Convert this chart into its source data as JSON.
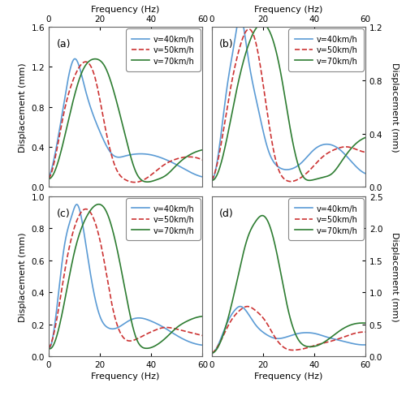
{
  "xlabel": "Frequency (Hz)",
  "ylabel": "Displacement (mm)",
  "xlim": [
    0,
    60
  ],
  "xticks": [
    0,
    20,
    40,
    60
  ],
  "color_40": "#5B9BD5",
  "color_50": "#CC3333",
  "color_70": "#2E7D32",
  "panels": [
    {
      "label": "(a)",
      "row": 0,
      "col": 0,
      "ylim": [
        0,
        1.6
      ],
      "yticks": [
        0,
        0.4,
        0.8,
        1.2,
        1.6
      ],
      "y_side": "left",
      "x_side": "top",
      "v40": [
        0,
        0.08,
        3,
        0.4,
        6,
        0.85,
        10,
        1.28,
        14,
        1.0,
        20,
        0.55,
        25,
        0.32,
        30,
        0.31,
        35,
        0.33,
        40,
        0.32,
        45,
        0.28,
        50,
        0.22,
        55,
        0.15,
        60,
        0.1
      ],
      "v50": [
        0,
        0.08,
        3,
        0.35,
        6,
        0.75,
        10,
        1.1,
        14,
        1.25,
        18,
        1.1,
        22,
        0.6,
        26,
        0.2,
        30,
        0.07,
        35,
        0.05,
        40,
        0.12,
        45,
        0.22,
        50,
        0.28,
        55,
        0.3,
        60,
        0.27
      ],
      "v70": [
        0,
        0.08,
        4,
        0.28,
        8,
        0.7,
        13,
        1.15,
        18,
        1.28,
        22,
        1.2,
        26,
        0.9,
        30,
        0.5,
        34,
        0.15,
        38,
        0.05,
        42,
        0.07,
        46,
        0.12,
        50,
        0.22,
        55,
        0.32,
        60,
        0.37
      ]
    },
    {
      "label": "(b)",
      "row": 0,
      "col": 1,
      "ylim": [
        0,
        1.2
      ],
      "yticks": [
        0,
        0.4,
        0.8,
        1.2
      ],
      "y_side": "right",
      "x_side": "top",
      "v40": [
        0,
        0.05,
        3,
        0.3,
        6,
        0.75,
        9,
        1.1,
        11,
        1.28,
        14,
        1.0,
        18,
        0.6,
        22,
        0.28,
        26,
        0.15,
        30,
        0.13,
        35,
        0.18,
        40,
        0.28,
        45,
        0.32,
        50,
        0.28,
        55,
        0.18,
        60,
        0.1
      ],
      "v50": [
        0,
        0.05,
        3,
        0.25,
        7,
        0.7,
        11,
        1.05,
        14,
        1.18,
        17,
        1.1,
        21,
        0.65,
        25,
        0.2,
        29,
        0.05,
        33,
        0.05,
        38,
        0.12,
        43,
        0.22,
        48,
        0.28,
        53,
        0.3,
        58,
        0.27,
        60,
        0.26
      ],
      "v70": [
        0,
        0.05,
        5,
        0.28,
        10,
        0.75,
        15,
        1.1,
        19,
        1.22,
        23,
        1.15,
        27,
        0.85,
        31,
        0.4,
        35,
        0.1,
        39,
        0.05,
        43,
        0.07,
        47,
        0.1,
        51,
        0.2,
        55,
        0.3,
        58,
        0.35,
        60,
        0.37
      ]
    },
    {
      "label": "(c)",
      "row": 1,
      "col": 0,
      "ylim": [
        0,
        1.0
      ],
      "yticks": [
        0,
        0.2,
        0.4,
        0.6,
        0.8,
        1.0
      ],
      "y_side": "left",
      "x_side": "bottom",
      "v40": [
        0,
        0.05,
        3,
        0.28,
        6,
        0.68,
        9,
        0.88,
        11,
        0.95,
        14,
        0.75,
        17,
        0.45,
        20,
        0.25,
        23,
        0.18,
        27,
        0.18,
        31,
        0.22,
        35,
        0.24,
        40,
        0.22,
        45,
        0.18,
        50,
        0.13,
        55,
        0.09,
        60,
        0.07
      ],
      "v50": [
        0,
        0.05,
        3,
        0.22,
        7,
        0.6,
        11,
        0.85,
        14,
        0.92,
        17,
        0.88,
        21,
        0.65,
        25,
        0.3,
        29,
        0.12,
        33,
        0.1,
        37,
        0.13,
        41,
        0.16,
        45,
        0.18,
        50,
        0.17,
        55,
        0.15,
        60,
        0.13
      ],
      "v70": [
        0,
        0.05,
        5,
        0.25,
        10,
        0.65,
        15,
        0.88,
        19,
        0.95,
        22,
        0.92,
        26,
        0.72,
        30,
        0.4,
        34,
        0.12,
        38,
        0.05,
        42,
        0.07,
        46,
        0.12,
        50,
        0.18,
        54,
        0.22,
        57,
        0.24,
        60,
        0.25
      ]
    },
    {
      "label": "(d)",
      "row": 1,
      "col": 1,
      "ylim": [
        0,
        2.5
      ],
      "yticks": [
        0,
        0.5,
        1.0,
        1.5,
        2.0,
        2.5
      ],
      "y_side": "right",
      "x_side": "bottom",
      "v40": [
        0,
        0.05,
        3,
        0.22,
        6,
        0.52,
        9,
        0.72,
        11,
        0.78,
        14,
        0.68,
        17,
        0.5,
        21,
        0.35,
        25,
        0.28,
        29,
        0.3,
        33,
        0.35,
        37,
        0.37,
        41,
        0.35,
        45,
        0.3,
        50,
        0.25,
        55,
        0.2,
        60,
        0.18
      ],
      "v50": [
        0,
        0.05,
        3,
        0.2,
        7,
        0.52,
        11,
        0.72,
        14,
        0.78,
        17,
        0.72,
        21,
        0.55,
        25,
        0.28,
        29,
        0.12,
        33,
        0.1,
        37,
        0.13,
        41,
        0.18,
        45,
        0.22,
        50,
        0.28,
        55,
        0.35,
        60,
        0.38
      ],
      "v70": [
        0,
        0.05,
        5,
        0.4,
        10,
        1.2,
        14,
        1.85,
        17,
        2.1,
        20,
        2.2,
        23,
        2.0,
        26,
        1.5,
        30,
        0.7,
        34,
        0.25,
        38,
        0.15,
        42,
        0.18,
        46,
        0.28,
        50,
        0.4,
        55,
        0.5,
        58,
        0.52,
        60,
        0.52
      ]
    }
  ]
}
